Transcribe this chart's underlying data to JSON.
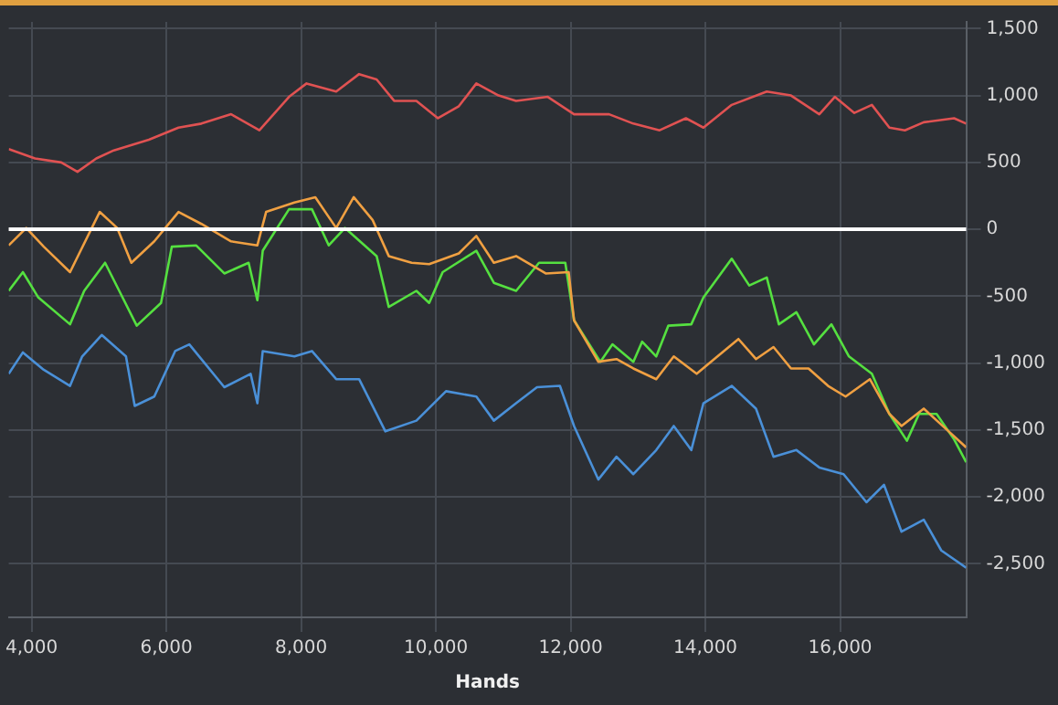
{
  "chart_data": {
    "type": "line",
    "xlabel": "Hands",
    "xlim": [
      3660,
      17870
    ],
    "xticks": [
      {
        "value": 4000,
        "label": "4,000"
      },
      {
        "value": 6000,
        "label": "6,000"
      },
      {
        "value": 8000,
        "label": "8,000"
      },
      {
        "value": 10000,
        "label": "10,000"
      },
      {
        "value": 12000,
        "label": "12,000"
      },
      {
        "value": 14000,
        "label": "14,000"
      },
      {
        "value": 16000,
        "label": "16,000"
      }
    ],
    "ylim": [
      -2900,
      1550
    ],
    "yticks": [
      {
        "value": -2500,
        "label": "-2,500"
      },
      {
        "value": -2000,
        "label": "-2,000"
      },
      {
        "value": -1500,
        "label": "-1,500"
      },
      {
        "value": -1000,
        "label": "-1,000"
      },
      {
        "value": -500,
        "label": "-500"
      },
      0,
      500,
      {
        "value": 1000,
        "label": "1,000"
      },
      {
        "value": 1500,
        "label": "1,500"
      }
    ],
    "grid": true,
    "legend": false,
    "marker": "none",
    "line_style": "solid",
    "ref_lines": [
      {
        "axis": "y",
        "value": 0,
        "color": "#ffffff"
      }
    ],
    "series": [
      {
        "color": "#e05252",
        "x": [
          3660,
          4050,
          4440,
          4680,
          4960,
          5220,
          5740,
          6180,
          6520,
          6960,
          7380,
          7820,
          8080,
          8520,
          8860,
          9120,
          9380,
          9710,
          10030,
          10340,
          10600,
          10930,
          11190,
          11660,
          12050,
          12570,
          12930,
          13320,
          13710,
          13970,
          14390,
          14910,
          15270,
          15690,
          15920,
          16210,
          16470,
          16730,
          16960,
          17240,
          17690,
          17870
        ],
        "values": [
          600,
          530,
          500,
          430,
          530,
          590,
          670,
          760,
          790,
          860,
          740,
          990,
          1090,
          1030,
          1160,
          1120,
          960,
          960,
          830,
          920,
          1090,
          1000,
          960,
          990,
          860,
          860,
          790,
          740,
          830,
          760,
          930,
          1030,
          1000,
          860,
          990,
          870,
          930,
          760,
          740,
          800,
          830,
          790
        ]
      },
      {
        "color": "#f0a042",
        "x": [
          3660,
          3920,
          4180,
          4570,
          5010,
          5270,
          5480,
          5820,
          6180,
          6520,
          6960,
          7350,
          7480,
          7900,
          8210,
          8520,
          8780,
          9060,
          9300,
          9640,
          9900,
          10340,
          10600,
          10860,
          11190,
          11630,
          11970,
          12050,
          12410,
          12680,
          12930,
          13270,
          13530,
          13870,
          14130,
          14490,
          14750,
          15010,
          15270,
          15530,
          15820,
          16080,
          16440,
          16730,
          16910,
          17240,
          17610,
          17870
        ],
        "values": [
          -120,
          10,
          -130,
          -320,
          130,
          10,
          -250,
          -90,
          130,
          40,
          -90,
          -120,
          130,
          200,
          240,
          10,
          240,
          70,
          -200,
          -250,
          -260,
          -180,
          -50,
          -250,
          -200,
          -330,
          -320,
          -680,
          -990,
          -970,
          -1040,
          -1120,
          -950,
          -1080,
          -970,
          -820,
          -970,
          -880,
          -1040,
          -1040,
          -1170,
          -1250,
          -1120,
          -1380,
          -1470,
          -1340,
          -1510,
          -1630
        ]
      },
      {
        "color": "#55e040",
        "x": [
          3660,
          3870,
          4100,
          4570,
          4780,
          5090,
          5300,
          5560,
          5920,
          6080,
          6440,
          6860,
          7220,
          7350,
          7430,
          7820,
          8160,
          8410,
          8650,
          9120,
          9300,
          9710,
          9900,
          10100,
          10600,
          10860,
          11190,
          11530,
          11920,
          12050,
          12440,
          12620,
          12930,
          13060,
          13270,
          13450,
          13790,
          13970,
          14390,
          14650,
          14910,
          15090,
          15350,
          15610,
          15870,
          16130,
          16470,
          16730,
          16990,
          17170,
          17430,
          17690,
          17870
        ],
        "values": [
          -460,
          -320,
          -510,
          -710,
          -460,
          -250,
          -460,
          -720,
          -550,
          -130,
          -120,
          -330,
          -250,
          -530,
          -160,
          150,
          150,
          -120,
          10,
          -200,
          -580,
          -460,
          -550,
          -320,
          -160,
          -400,
          -460,
          -250,
          -250,
          -680,
          -990,
          -860,
          -990,
          -840,
          -950,
          -720,
          -710,
          -510,
          -220,
          -420,
          -360,
          -710,
          -620,
          -860,
          -710,
          -950,
          -1080,
          -1380,
          -1580,
          -1380,
          -1380,
          -1570,
          -1740
        ]
      },
      {
        "color": "#4a90d8",
        "x": [
          3660,
          3870,
          4180,
          4570,
          4750,
          5040,
          5400,
          5530,
          5820,
          6130,
          6340,
          6860,
          7250,
          7350,
          7430,
          7900,
          8160,
          8520,
          8860,
          9250,
          9710,
          10150,
          10600,
          10860,
          11190,
          11500,
          11840,
          12050,
          12410,
          12680,
          12930,
          13270,
          13530,
          13790,
          13970,
          14390,
          14750,
          15010,
          15350,
          15690,
          16050,
          16390,
          16650,
          16910,
          17240,
          17500,
          17870
        ],
        "values": [
          -1080,
          -920,
          -1050,
          -1170,
          -950,
          -790,
          -950,
          -1320,
          -1250,
          -910,
          -860,
          -1180,
          -1080,
          -1300,
          -910,
          -950,
          -910,
          -1120,
          -1120,
          -1510,
          -1430,
          -1210,
          -1250,
          -1430,
          -1300,
          -1180,
          -1170,
          -1470,
          -1870,
          -1700,
          -1830,
          -1650,
          -1470,
          -1650,
          -1300,
          -1170,
          -1340,
          -1700,
          -1650,
          -1780,
          -1830,
          -2040,
          -1910,
          -2260,
          -2170,
          -2400,
          -2530
        ]
      }
    ]
  }
}
